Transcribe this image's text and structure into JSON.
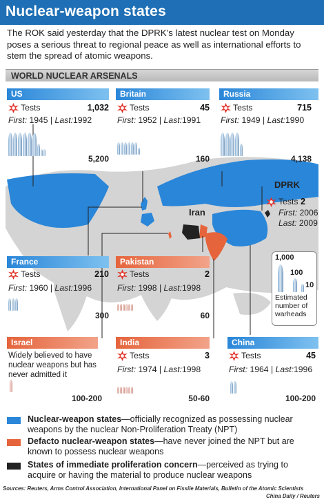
{
  "title": "Nuclear-weapon states",
  "lead": "The ROK said yesterday that the DPRK’s latest nuclear test on Monday poses a serious threat to regional peace as well as international efforts to stem the spread of atomic weapons.",
  "section": "WORLD NUCLEAR ARSENALS",
  "colors": {
    "nws": "#2a86d8",
    "defacto": "#e5643c",
    "concern": "#222222",
    "other": "#d4d4d4"
  },
  "states": {
    "us": {
      "name": "US",
      "tests_label": "Tests",
      "tests": "1,032",
      "first_label": "First:",
      "first": "1945",
      "last_label": "Last:",
      "last": "1992",
      "warheads": "5,200"
    },
    "britain": {
      "name": "Britain",
      "tests_label": "Tests",
      "tests": "45",
      "first_label": "First:",
      "first": "1952",
      "last_label": "Last:",
      "last": "1991",
      "warheads": "160"
    },
    "russia": {
      "name": "Russia",
      "tests_label": "Tests",
      "tests": "715",
      "first_label": "First:",
      "first": "1949",
      "last_label": "Last:",
      "last": "1990",
      "warheads": "4,138"
    },
    "france": {
      "name": "France",
      "tests_label": "Tests",
      "tests": "210",
      "first_label": "First:",
      "first": "1960",
      "last_label": "Last:",
      "last": "1996",
      "warheads": "300"
    },
    "pakistan": {
      "name": "Pakistan",
      "tests_label": "Tests",
      "tests": "2",
      "first_label": "First:",
      "first": "1998",
      "last_label": "Last:",
      "last": "1998",
      "warheads": "60"
    },
    "israel": {
      "name": "Israel",
      "note": "Widely believed to have nuclear weapons but has never admitted it",
      "warheads": "100-200"
    },
    "india": {
      "name": "India",
      "tests_label": "Tests",
      "tests": "3",
      "first_label": "First:",
      "first": "1974",
      "last_label": "Last:",
      "last": "1998",
      "warheads": "50-60"
    },
    "china": {
      "name": "China",
      "tests_label": "Tests",
      "tests": "45",
      "first_label": "First:",
      "first": "1964",
      "last_label": "Last:",
      "last": "1996",
      "warheads": "100-200"
    },
    "dprk": {
      "name": "DPRK",
      "tests_label": "Tests",
      "tests": "2",
      "first_label": "First:",
      "first": "2006",
      "last_label": "Last:",
      "last": "2009"
    },
    "iran": {
      "name": "Iran"
    }
  },
  "scale": {
    "big": "1,000",
    "mid": "100",
    "small": "10",
    "caption": "Estimated number of warheads"
  },
  "legend": [
    {
      "bold": "Nuclear-weapon states",
      "text": "—officially recognized as possessing nuclear weapons by the nuclear Non-Proliferation Treaty (NPT)",
      "color": "#2a86d8"
    },
    {
      "bold": "Defacto nuclear-weapon states",
      "text": "—have never joined the NPT but are known to possess nuclear weapons",
      "color": "#e5643c"
    },
    {
      "bold": "States of immediate proliferation concern",
      "text": "—perceived as trying to acquire or having the material to produce nuclear weapons",
      "color": "#222222"
    }
  ],
  "sources": "Sources: Reuters, Arms Control Association, International Panel on Fissile Materials, Bulletin of the Atomic Scientists",
  "credit": "China Daily / Reuters"
}
